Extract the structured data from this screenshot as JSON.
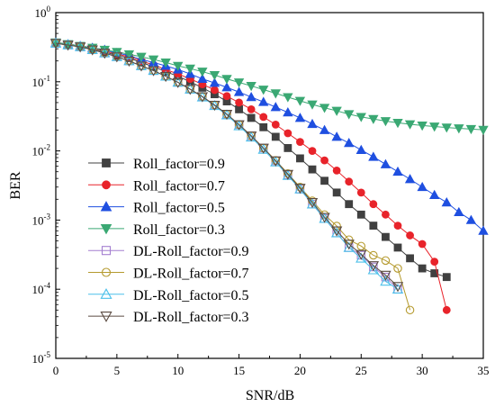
{
  "chart_data": {
    "type": "line",
    "title": "",
    "xlabel": "SNR/dB",
    "ylabel": "BER",
    "xlim": [
      0,
      35
    ],
    "ylim": [
      1e-05,
      1
    ],
    "yscale": "log",
    "grid": false,
    "legend_position": "lower-left",
    "x_ticks": [
      "0",
      "5",
      "10",
      "15",
      "20",
      "25",
      "30",
      "35"
    ],
    "y_ticks": [
      {
        "base": "10",
        "exp": "0"
      },
      {
        "base": "10",
        "exp": "-1"
      },
      {
        "base": "10",
        "exp": "-2"
      },
      {
        "base": "10",
        "exp": "-3"
      },
      {
        "base": "10",
        "exp": "-4"
      },
      {
        "base": "10",
        "exp": "-5"
      }
    ],
    "series": [
      {
        "name": "Roll_factor=0.9",
        "marker": "square",
        "filled": true,
        "color": "#404040",
        "x": [
          0,
          1,
          2,
          3,
          4,
          5,
          6,
          7,
          8,
          9,
          10,
          11,
          12,
          13,
          14,
          15,
          16,
          17,
          18,
          19,
          20,
          21,
          22,
          23,
          24,
          25,
          26,
          27,
          28,
          29,
          30,
          31,
          32
        ],
        "y": [
          0.36,
          0.34,
          0.32,
          0.3,
          0.27,
          0.24,
          0.22,
          0.19,
          0.165,
          0.14,
          0.12,
          0.1,
          0.082,
          0.066,
          0.052,
          0.04,
          0.03,
          0.022,
          0.016,
          0.011,
          0.0078,
          0.0054,
          0.0037,
          0.0025,
          0.0017,
          0.0012,
          0.00083,
          0.00057,
          0.0004,
          0.00028,
          0.0002,
          0.00017,
          0.00015
        ]
      },
      {
        "name": "Roll_factor=0.7",
        "marker": "circle",
        "filled": true,
        "color": "#e8232a",
        "x": [
          0,
          1,
          2,
          3,
          4,
          5,
          6,
          7,
          8,
          9,
          10,
          11,
          12,
          13,
          14,
          15,
          16,
          17,
          18,
          19,
          20,
          21,
          22,
          23,
          24,
          25,
          26,
          27,
          28,
          29,
          30,
          31,
          32
        ],
        "y": [
          0.37,
          0.35,
          0.33,
          0.31,
          0.28,
          0.25,
          0.23,
          0.2,
          0.175,
          0.15,
          0.13,
          0.11,
          0.092,
          0.076,
          0.062,
          0.05,
          0.04,
          0.031,
          0.024,
          0.018,
          0.0135,
          0.01,
          0.0073,
          0.0052,
          0.0036,
          0.0025,
          0.0017,
          0.0012,
          0.00083,
          0.0006,
          0.00045,
          0.00025,
          5e-05
        ]
      },
      {
        "name": "Roll_factor=0.5",
        "marker": "triangle-up",
        "filled": true,
        "color": "#1f4fe0",
        "x": [
          0,
          1,
          2,
          3,
          4,
          5,
          6,
          7,
          8,
          9,
          10,
          11,
          12,
          13,
          14,
          15,
          16,
          17,
          18,
          19,
          20,
          21,
          22,
          23,
          24,
          25,
          26,
          27,
          28,
          29,
          30,
          31,
          32,
          33,
          34,
          35
        ],
        "y": [
          0.37,
          0.35,
          0.33,
          0.31,
          0.29,
          0.26,
          0.24,
          0.21,
          0.19,
          0.17,
          0.15,
          0.13,
          0.11,
          0.096,
          0.083,
          0.071,
          0.06,
          0.051,
          0.043,
          0.036,
          0.03,
          0.0245,
          0.02,
          0.016,
          0.013,
          0.0103,
          0.0082,
          0.0064,
          0.005,
          0.0039,
          0.003,
          0.0023,
          0.0018,
          0.0013,
          0.001,
          0.0007
        ]
      },
      {
        "name": "Roll_factor=0.3",
        "marker": "triangle-down",
        "filled": true,
        "color": "#3aa873",
        "x": [
          0,
          1,
          2,
          3,
          4,
          5,
          6,
          7,
          8,
          9,
          10,
          11,
          12,
          13,
          14,
          15,
          16,
          17,
          18,
          19,
          20,
          21,
          22,
          23,
          24,
          25,
          26,
          27,
          28,
          29,
          30,
          31,
          32,
          33,
          34,
          35
        ],
        "y": [
          0.37,
          0.35,
          0.33,
          0.31,
          0.29,
          0.27,
          0.25,
          0.23,
          0.21,
          0.19,
          0.17,
          0.155,
          0.14,
          0.125,
          0.11,
          0.098,
          0.087,
          0.077,
          0.068,
          0.06,
          0.053,
          0.047,
          0.042,
          0.038,
          0.034,
          0.031,
          0.029,
          0.027,
          0.0255,
          0.0243,
          0.0233,
          0.0225,
          0.0218,
          0.0212,
          0.0207,
          0.0202
        ]
      },
      {
        "name": "DL-Roll_factor=0.9",
        "marker": "square",
        "filled": false,
        "color": "#a47fd0",
        "x": [
          0,
          1,
          2,
          3,
          4,
          5,
          6,
          7,
          8,
          9,
          10,
          11,
          12,
          13,
          14,
          15,
          16,
          17,
          18,
          19,
          20,
          21,
          22,
          23,
          24,
          25,
          26,
          27,
          28
        ],
        "y": [
          0.36,
          0.34,
          0.32,
          0.29,
          0.26,
          0.23,
          0.2,
          0.17,
          0.145,
          0.12,
          0.098,
          0.078,
          0.061,
          0.046,
          0.034,
          0.024,
          0.0165,
          0.011,
          0.0072,
          0.0045,
          0.0028,
          0.0017,
          0.00105,
          0.00065,
          0.0004,
          0.00031,
          0.00021,
          0.00015,
          0.0001
        ]
      },
      {
        "name": "DL-Roll_factor=0.7",
        "marker": "circle",
        "filled": false,
        "color": "#b59a2e",
        "x": [
          0,
          1,
          2,
          3,
          4,
          5,
          6,
          7,
          8,
          9,
          10,
          11,
          12,
          13,
          14,
          15,
          16,
          17,
          18,
          19,
          20,
          21,
          22,
          23,
          24,
          25,
          26,
          27,
          28,
          29
        ],
        "y": [
          0.36,
          0.34,
          0.32,
          0.29,
          0.26,
          0.23,
          0.2,
          0.17,
          0.145,
          0.12,
          0.098,
          0.078,
          0.061,
          0.046,
          0.034,
          0.024,
          0.0165,
          0.011,
          0.0073,
          0.0047,
          0.003,
          0.0019,
          0.0012,
          0.00082,
          0.00052,
          0.00042,
          0.00031,
          0.00026,
          0.0002,
          5e-05
        ]
      },
      {
        "name": "DL-Roll_factor=0.5",
        "marker": "triangle-up",
        "filled": false,
        "color": "#4cc0ea",
        "x": [
          0,
          1,
          2,
          3,
          4,
          5,
          6,
          7,
          8,
          9,
          10,
          11,
          12,
          13,
          14,
          15,
          16,
          17,
          18,
          19,
          20,
          21,
          22,
          23,
          24,
          25,
          26,
          27,
          28
        ],
        "y": [
          0.36,
          0.34,
          0.32,
          0.29,
          0.26,
          0.23,
          0.2,
          0.17,
          0.145,
          0.12,
          0.098,
          0.078,
          0.06,
          0.045,
          0.033,
          0.023,
          0.0158,
          0.0105,
          0.0069,
          0.0044,
          0.0028,
          0.0017,
          0.00105,
          0.00065,
          0.0004,
          0.00028,
          0.00019,
          0.00013,
          0.0001
        ]
      },
      {
        "name": "DL-Roll_factor=0.3",
        "marker": "triangle-down",
        "filled": false,
        "color": "#5a4a40",
        "x": [
          0,
          1,
          2,
          3,
          4,
          5,
          6,
          7,
          8,
          9,
          10,
          11,
          12,
          13,
          14,
          15,
          16,
          17,
          18,
          19,
          20,
          21,
          22,
          23,
          24,
          25,
          26,
          27,
          28
        ],
        "y": [
          0.36,
          0.34,
          0.32,
          0.29,
          0.26,
          0.23,
          0.2,
          0.17,
          0.145,
          0.12,
          0.098,
          0.078,
          0.061,
          0.046,
          0.034,
          0.024,
          0.0165,
          0.011,
          0.0072,
          0.0046,
          0.0029,
          0.0018,
          0.0011,
          0.0007,
          0.00045,
          0.00032,
          0.00022,
          0.00016,
          0.00011
        ]
      }
    ]
  }
}
